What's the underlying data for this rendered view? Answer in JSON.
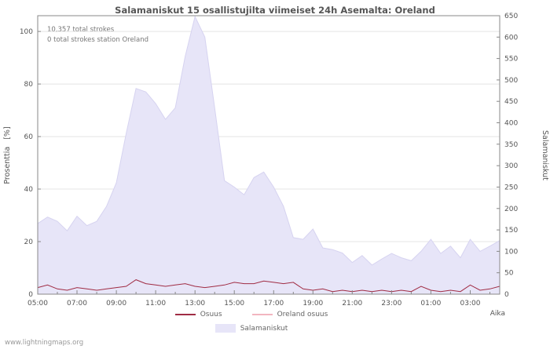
{
  "title": "Salamaniskut 15 osallistujilta viimeiset 24h Asemalta: Oreland",
  "annotations": {
    "total_strokes": "10,357 total strokes",
    "station_strokes": "0 total strokes station Oreland"
  },
  "axes": {
    "left_label": "Prosenttia   [%]",
    "right_label": "Salamaniskut",
    "x_label": "Aika",
    "left_ticks": [
      0,
      20,
      40,
      60,
      80,
      100
    ],
    "right_ticks": [
      0,
      50,
      100,
      150,
      200,
      250,
      300,
      350,
      400,
      450,
      500,
      550,
      600,
      650
    ],
    "x_ticks": [
      "05:00",
      "07:00",
      "09:00",
      "11:00",
      "13:00",
      "15:00",
      "17:00",
      "19:00",
      "21:00",
      "23:00",
      "01:00",
      "03:00"
    ]
  },
  "legend": [
    {
      "label": "Osuus"
    },
    {
      "label": "Oreland osuus"
    },
    {
      "label": "Salamaniskut"
    }
  ],
  "colors": {
    "osuus": "#a02c44",
    "oreland": "#f2b6c0",
    "area": "#e7e5f8",
    "area_edge": "#d6d3f0",
    "grid": "#e4e4e4",
    "axis": "#888888",
    "text": "#555555"
  },
  "watermark": "www.lightningmaps.org",
  "chart_data": {
    "type": "area",
    "x": [
      "05:00",
      "05:30",
      "06:00",
      "06:30",
      "07:00",
      "07:30",
      "08:00",
      "08:30",
      "09:00",
      "09:30",
      "10:00",
      "10:30",
      "11:00",
      "11:30",
      "12:00",
      "12:30",
      "13:00",
      "13:30",
      "14:00",
      "14:30",
      "15:00",
      "15:30",
      "16:00",
      "16:30",
      "17:00",
      "17:30",
      "18:00",
      "18:30",
      "19:00",
      "19:30",
      "20:00",
      "20:30",
      "21:00",
      "21:30",
      "22:00",
      "22:30",
      "23:00",
      "23:30",
      "00:00",
      "00:30",
      "01:00",
      "01:30",
      "02:00",
      "02:30",
      "03:00",
      "03:30",
      "04:00",
      "04:30"
    ],
    "series": [
      {
        "name": "Salamaniskut",
        "type": "area",
        "axis": "right",
        "values": [
          165,
          180,
          170,
          148,
          182,
          160,
          170,
          205,
          260,
          375,
          480,
          472,
          445,
          408,
          435,
          555,
          648,
          600,
          435,
          265,
          250,
          232,
          272,
          285,
          250,
          205,
          132,
          128,
          152,
          108,
          104,
          96,
          74,
          90,
          68,
          82,
          95,
          85,
          78,
          100,
          128,
          95,
          112,
          85,
          128,
          100,
          112,
          125
        ]
      },
      {
        "name": "Osuus",
        "type": "line",
        "axis": "left",
        "values": [
          2.5,
          3.5,
          2,
          1.5,
          2.5,
          2,
          1.5,
          2,
          2.5,
          3,
          5.5,
          4,
          3.5,
          3,
          3.5,
          4,
          3,
          2.5,
          3,
          3.5,
          4.5,
          4,
          4,
          5,
          4.5,
          4,
          4.5,
          2,
          1.5,
          2,
          1,
          1.5,
          1,
          1.5,
          1,
          1.5,
          1,
          1.5,
          1,
          3,
          1.5,
          1,
          1.5,
          1,
          3.5,
          1.5,
          2,
          3
        ]
      },
      {
        "name": "Oreland osuus",
        "type": "line",
        "axis": "left",
        "values": [
          0,
          0,
          0,
          0,
          0,
          0,
          0,
          0,
          0,
          0,
          0,
          0,
          0,
          0,
          0,
          0,
          0,
          0,
          0,
          0,
          0,
          0,
          0,
          0,
          0,
          0,
          0,
          0,
          0,
          0,
          0,
          0,
          0,
          0,
          0,
          0,
          0,
          0,
          0,
          0,
          0,
          0,
          0,
          0,
          0,
          0,
          0,
          0
        ]
      }
    ],
    "ylim_left": [
      0,
      106
    ],
    "ylim_right": [
      0,
      650
    ],
    "grid": true,
    "legend_position": "bottom"
  }
}
